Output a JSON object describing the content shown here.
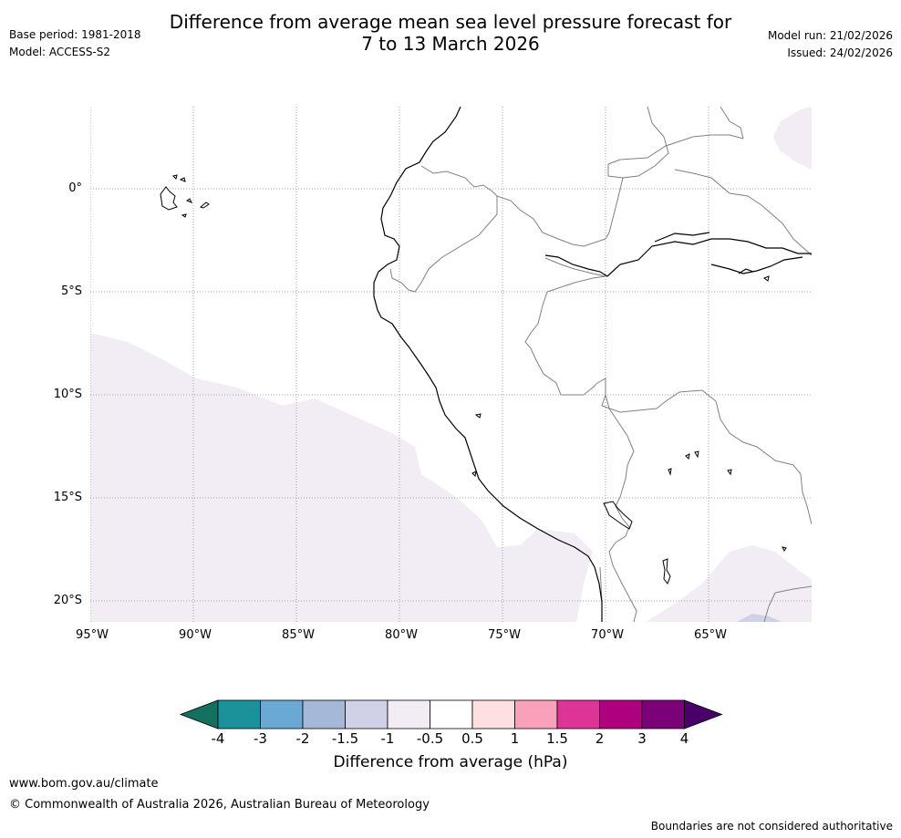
{
  "title": {
    "line1": "Difference from average mean sea level pressure forecast for",
    "line2": "7 to 13 March 2026"
  },
  "meta": {
    "base_period": "Base period: 1981-2018",
    "model": "Model: ACCESS-S2",
    "model_run": "Model run: 21/02/2026",
    "issued": "Issued: 24/02/2026"
  },
  "map": {
    "lat_labels": [
      "0°",
      "5°S",
      "10°S",
      "15°S",
      "20°S"
    ],
    "lon_labels": [
      "95°W",
      "90°W",
      "85°W",
      "80°W",
      "75°W",
      "70°W",
      "65°W"
    ]
  },
  "colorbar": {
    "ticks": [
      "-4",
      "-3",
      "-2",
      "-1.5",
      "-1",
      "-0.5",
      "0.5",
      "1",
      "1.5",
      "2",
      "3",
      "4"
    ],
    "colors": [
      "#14705f",
      "#1b9199",
      "#6aa9d3",
      "#a6b8d8",
      "#d0d1e6",
      "#f2ecf4",
      "#ffffff",
      "#fee0e0",
      "#f9a1bb",
      "#dd3497",
      "#ae017e",
      "#7a0177",
      "#49006a"
    ],
    "label": "Difference from average (hPa)"
  },
  "footer": {
    "url": "www.bom.gov.au/climate",
    "copyright": "© Commonwealth of Australia 2026, Australian Bureau of Meteorology",
    "note": "Boundaries are not considered authoritative"
  }
}
